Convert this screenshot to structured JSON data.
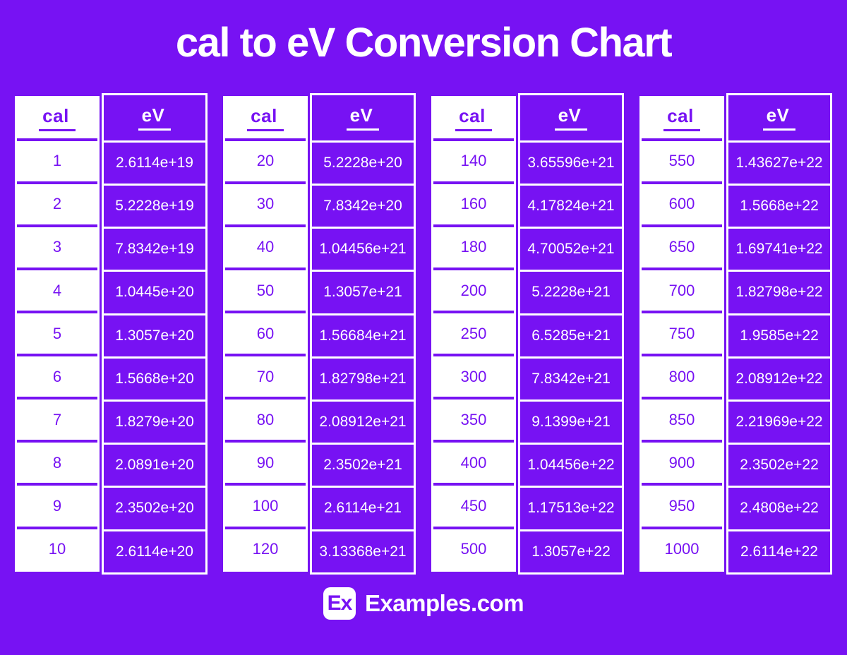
{
  "title": "cal to eV Conversion Chart",
  "colors": {
    "background": "#7712f3",
    "accent_purple": "#7712f3",
    "white": "#ffffff"
  },
  "chart_data": {
    "type": "table",
    "title": "cal to eV Conversion Chart",
    "columns": [
      "cal",
      "eV"
    ],
    "tables": [
      {
        "rows": [
          [
            "1",
            "2.6114e+19"
          ],
          [
            "2",
            "5.2228e+19"
          ],
          [
            "3",
            "7.8342e+19"
          ],
          [
            "4",
            "1.0445e+20"
          ],
          [
            "5",
            "1.3057e+20"
          ],
          [
            "6",
            "1.5668e+20"
          ],
          [
            "7",
            "1.8279e+20"
          ],
          [
            "8",
            "2.0891e+20"
          ],
          [
            "9",
            "2.3502e+20"
          ],
          [
            "10",
            "2.6114e+20"
          ]
        ]
      },
      {
        "rows": [
          [
            "20",
            "5.2228e+20"
          ],
          [
            "30",
            "7.8342e+20"
          ],
          [
            "40",
            "1.04456e+21"
          ],
          [
            "50",
            "1.3057e+21"
          ],
          [
            "60",
            "1.56684e+21"
          ],
          [
            "70",
            "1.82798e+21"
          ],
          [
            "80",
            "2.08912e+21"
          ],
          [
            "90",
            "2.3502e+21"
          ],
          [
            "100",
            "2.6114e+21"
          ],
          [
            "120",
            "3.13368e+21"
          ]
        ]
      },
      {
        "rows": [
          [
            "140",
            "3.65596e+21"
          ],
          [
            "160",
            "4.17824e+21"
          ],
          [
            "180",
            "4.70052e+21"
          ],
          [
            "200",
            "5.2228e+21"
          ],
          [
            "250",
            "6.5285e+21"
          ],
          [
            "300",
            "7.8342e+21"
          ],
          [
            "350",
            "9.1399e+21"
          ],
          [
            "400",
            "1.04456e+22"
          ],
          [
            "450",
            "1.17513e+22"
          ],
          [
            "500",
            "1.3057e+22"
          ]
        ]
      },
      {
        "rows": [
          [
            "550",
            "1.43627e+22"
          ],
          [
            "600",
            "1.5668e+22"
          ],
          [
            "650",
            "1.69741e+22"
          ],
          [
            "700",
            "1.82798e+22"
          ],
          [
            "750",
            "1.9585e+22"
          ],
          [
            "800",
            "2.08912e+22"
          ],
          [
            "850",
            "2.21969e+22"
          ],
          [
            "900",
            "2.3502e+22"
          ],
          [
            "950",
            "2.4808e+22"
          ],
          [
            "1000",
            "2.6114e+22"
          ]
        ]
      }
    ]
  },
  "footer": {
    "logo": "Ex",
    "brand": "Examples.com"
  }
}
